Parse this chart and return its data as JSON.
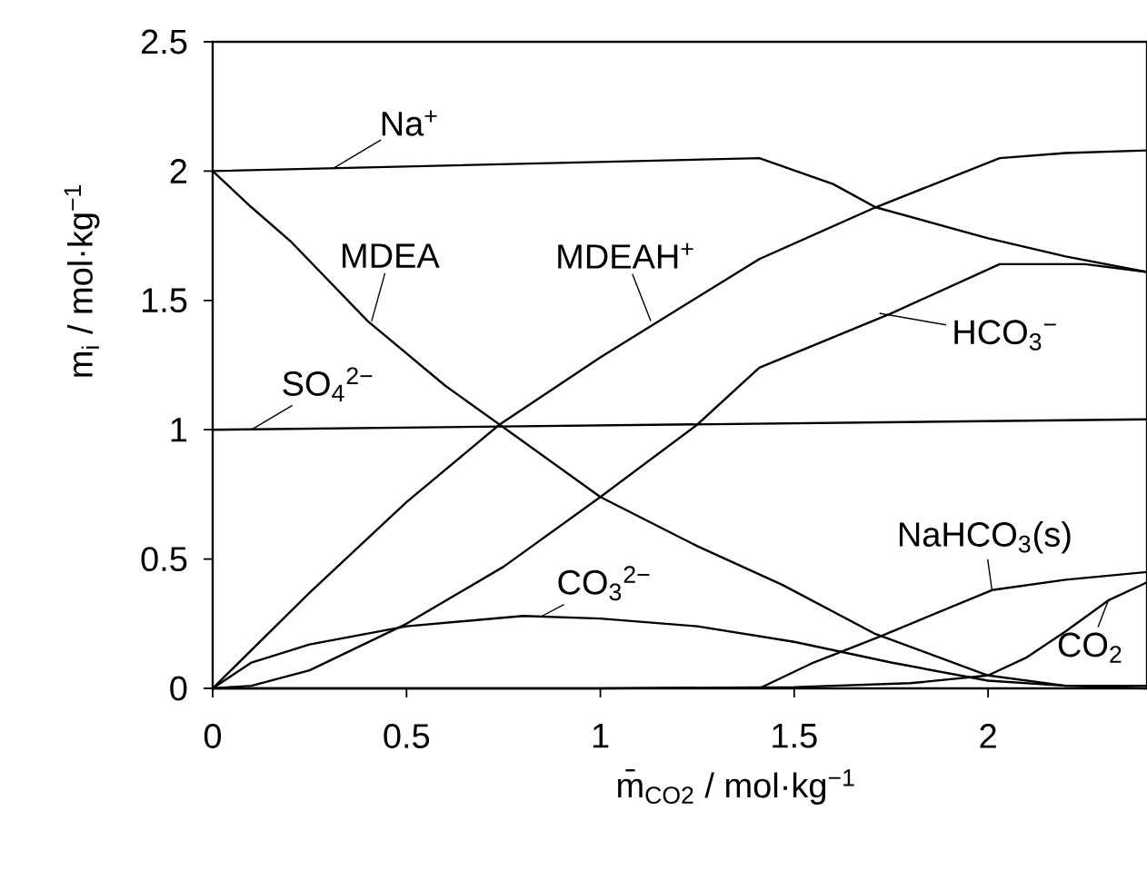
{
  "chart_data": {
    "type": "line",
    "xlabel": "m̄$_{CO2}$ / mol·kg$^{−1}$",
    "ylabel": "m$_{i}$ / mol·kg$^{−1}$",
    "xlim": [
      0,
      2.41
    ],
    "ylim": [
      0,
      2.5
    ],
    "xticks": [
      0,
      0.5,
      1,
      1.5,
      2
    ],
    "yticks": [
      0,
      0.5,
      1,
      1.5,
      2,
      2.5
    ],
    "series": [
      {
        "color": "#000000",
        "x": [
          0,
          1.41,
          1.6,
          1.71,
          2.0,
          2.2,
          2.41
        ],
        "values": [
          2,
          2.05,
          1.95,
          1.86,
          1.74,
          1.67,
          1.61
        ]
      },
      {
        "color": "#000000",
        "x": [
          0,
          0.25,
          0.5,
          0.74,
          1.0,
          1.41,
          1.71,
          2.03,
          2.2,
          2.41
        ],
        "values": [
          0,
          0.37,
          0.72,
          1.02,
          1.28,
          1.66,
          1.86,
          2.05,
          2.07,
          2.08
        ]
      },
      {
        "color": "#000000",
        "x": [
          0,
          0.1,
          0.2,
          0.4,
          0.6,
          0.74,
          1.0,
          1.25,
          1.47,
          1.71,
          2.0,
          2.2,
          2.41
        ],
        "values": [
          2,
          1.86,
          1.73,
          1.42,
          1.17,
          1.02,
          0.74,
          0.55,
          0.4,
          0.21,
          0.05,
          0.01,
          0
        ]
      },
      {
        "color": "#000000",
        "x": [
          0,
          0.1,
          0.25,
          0.5,
          0.75,
          1.0,
          1.25,
          1.41,
          1.75,
          2.03,
          2.25,
          2.41
        ],
        "values": [
          0,
          0.01,
          0.07,
          0.25,
          0.47,
          0.74,
          1.02,
          1.24,
          1.45,
          1.64,
          1.64,
          1.61
        ]
      },
      {
        "color": "#000000",
        "x": [
          0,
          2.41
        ],
        "values": [
          1,
          1.04
        ]
      },
      {
        "color": "#000000",
        "x": [
          0,
          0.1,
          0.25,
          0.5,
          0.8,
          1.0,
          1.25,
          1.5,
          1.75,
          2.0,
          2.2,
          2.41
        ],
        "values": [
          0,
          0.1,
          0.17,
          0.24,
          0.28,
          0.27,
          0.24,
          0.18,
          0.1,
          0.03,
          0.01,
          0.01
        ]
      },
      {
        "color": "#000000",
        "x": [
          1.41,
          1.55,
          1.72,
          2.01,
          2.2,
          2.41
        ],
        "values": [
          0,
          0.1,
          0.2,
          0.38,
          0.42,
          0.45
        ]
      },
      {
        "color": "#000000",
        "x": [
          0,
          1.0,
          1.5,
          1.8,
          2.0,
          2.1,
          2.2,
          2.31,
          2.41
        ],
        "values": [
          0,
          0,
          0.005,
          0.02,
          0.05,
          0.12,
          0.22,
          0.34,
          0.41
        ]
      }
    ],
    "annotations": [
      {
        "text": "Na$^{+}$",
        "x": 0.31,
        "y": 2.01
      },
      {
        "text": "MDEA",
        "x": 0.41,
        "y": 1.42
      },
      {
        "text": "MDEAH$^{+}$",
        "x": 1.13,
        "y": 1.42
      },
      {
        "text": "HCO$_{3}$$^{−}$",
        "x": 1.72,
        "y": 1.45
      },
      {
        "text": "SO$_{4}$$^{2−}$",
        "x": 0.1,
        "y": 1.0
      },
      {
        "text": "CO$_{3}$$^{2−}$",
        "x": 0.85,
        "y": 0.28
      },
      {
        "text": "NaHCO$_{3}$(s)",
        "x": 2.01,
        "y": 0.38
      },
      {
        "text": "CO$_{2}$",
        "x": 2.31,
        "y": 0.34
      }
    ]
  }
}
